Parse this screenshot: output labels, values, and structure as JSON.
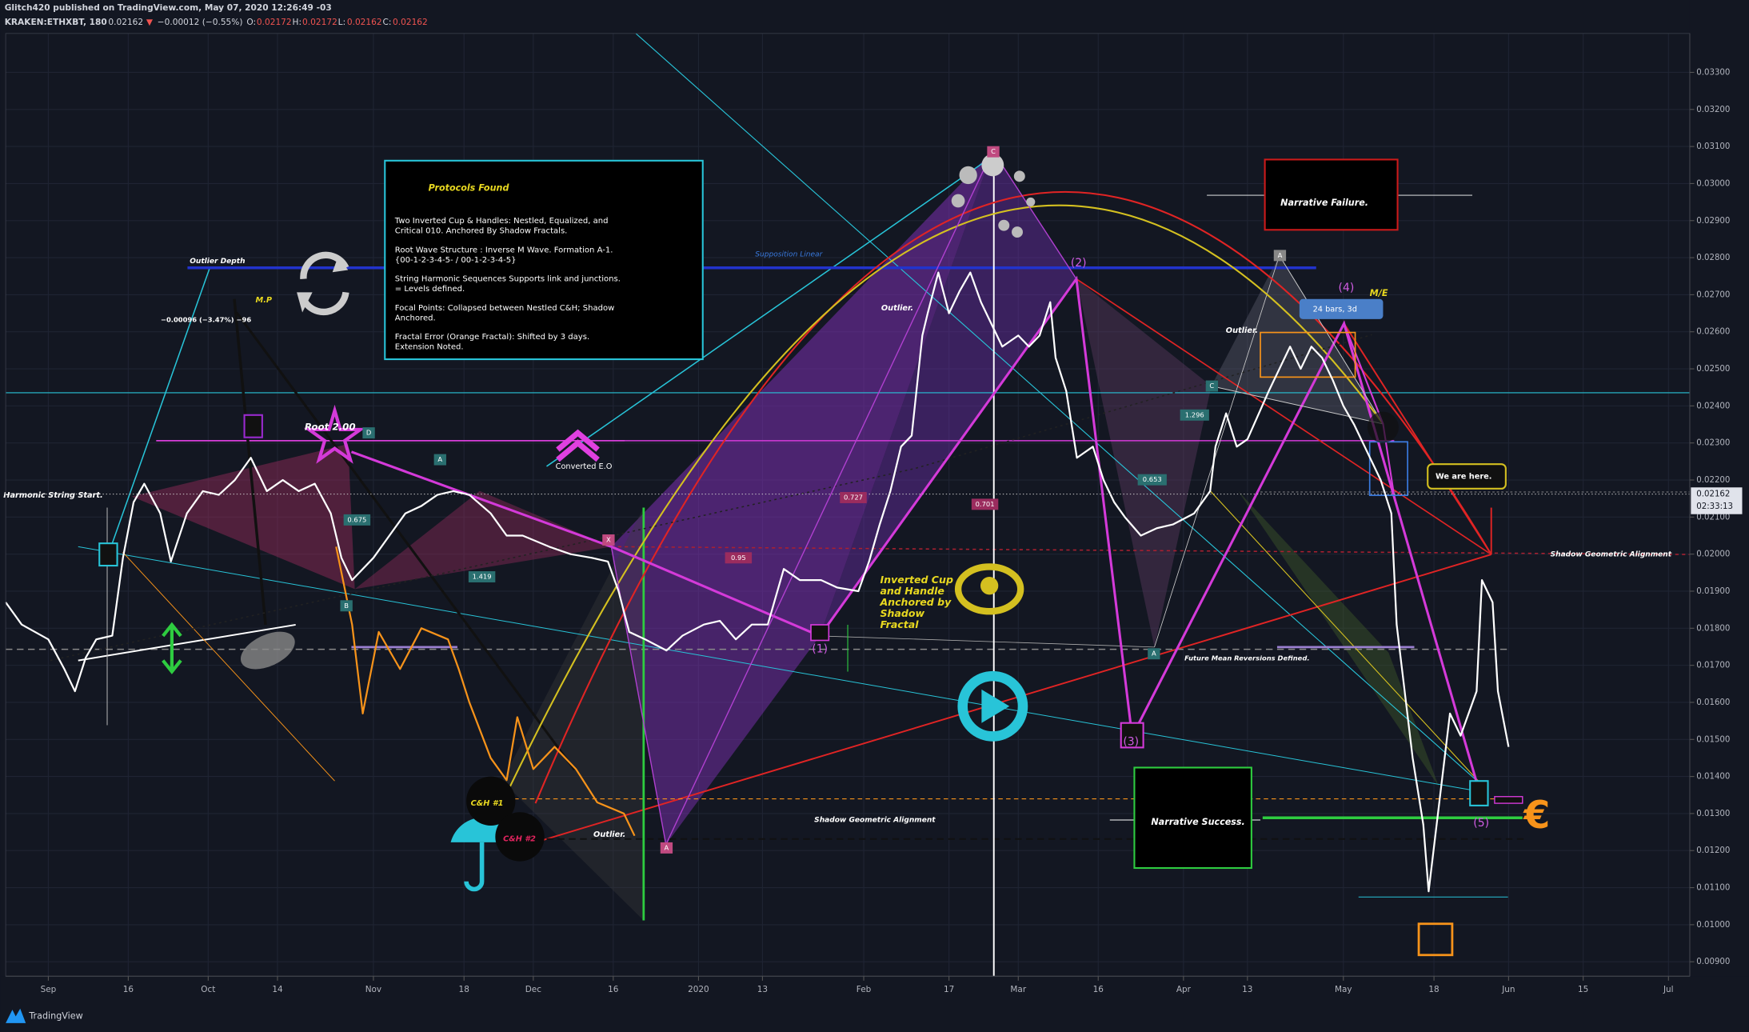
{
  "header": {
    "publisher": "Glitch420 published on TradingView.com, May 07, 2020 12:26:49 -03",
    "symbol": "KRAKEN:ETHXBT, 180",
    "last": "0.02162",
    "direction": "▼",
    "change": "−0.00012 (−0.55%)",
    "ohlc": [
      {
        "key": "O:",
        "value": "0.02172"
      },
      {
        "key": "H:",
        "value": "0.02172"
      },
      {
        "key": "L:",
        "value": "0.02162"
      },
      {
        "key": "C:",
        "value": "0.02162"
      }
    ]
  },
  "protocols": {
    "title": "Protocols Found",
    "paragraphs": [
      [
        "Two Inverted Cup & Handles: Nestled, Equalized, and",
        "Critical 010. Anchored By Shadow Fractals."
      ],
      [
        "Root Wave Structure : Inverse M Wave. Formation A-1.",
        "{00-1-2-3-4-5- / 00-1-2-3-4-5}"
      ],
      [
        "String Harmonic Sequences Supports link and junctions.",
        "= Levels defined."
      ],
      [
        "Focal Points: Collapsed between Nestled C&H; Shadow",
        "Anchored."
      ],
      [
        "Fractal Error (Orange Fractal): Shifted by 3 days.",
        "Extension Noted."
      ]
    ]
  },
  "chart_data": {
    "type": "line",
    "grid": true,
    "xlim": [
      "2019-08-24",
      "2020-07-05"
    ],
    "ylim": [
      0.00861,
      0.03405
    ],
    "xticks": [
      {
        "value": "2019-09-01",
        "label": "Sep"
      },
      {
        "value": "2019-09-16",
        "label": "16"
      },
      {
        "value": "2019-10-01",
        "label": "Oct"
      },
      {
        "value": "2019-10-14",
        "label": "14"
      },
      {
        "value": "2019-11-01",
        "label": "Nov"
      },
      {
        "value": "2019-11-18",
        "label": "18"
      },
      {
        "value": "2019-12-01",
        "label": "Dec"
      },
      {
        "value": "2019-12-16",
        "label": "16"
      },
      {
        "value": "2020-01-01",
        "label": "2020"
      },
      {
        "value": "2020-01-13",
        "label": "13"
      },
      {
        "value": "2020-02-01",
        "label": "Feb"
      },
      {
        "value": "2020-02-17",
        "label": "17"
      },
      {
        "value": "2020-03-01",
        "label": "Mar"
      },
      {
        "value": "2020-03-16",
        "label": "16"
      },
      {
        "value": "2020-04-01",
        "label": "Apr"
      },
      {
        "value": "2020-04-13",
        "label": "13"
      },
      {
        "value": "2020-05-01",
        "label": "May"
      },
      {
        "value": "2020-05-18",
        "label": "18"
      },
      {
        "value": "2020-06-01",
        "label": "Jun"
      },
      {
        "value": "2020-06-15",
        "label": "15"
      },
      {
        "value": "2020-07-01",
        "label": "Jul"
      }
    ],
    "yticks": [
      {
        "value": 0.009,
        "label": "0.00900"
      },
      {
        "value": 0.01,
        "label": "0.01000"
      },
      {
        "value": 0.011,
        "label": "0.01100"
      },
      {
        "value": 0.012,
        "label": "0.01200"
      },
      {
        "value": 0.013,
        "label": "0.01300"
      },
      {
        "value": 0.014,
        "label": "0.01400"
      },
      {
        "value": 0.015,
        "label": "0.01500"
      },
      {
        "value": 0.016,
        "label": "0.01600"
      },
      {
        "value": 0.017,
        "label": "0.01700"
      },
      {
        "value": 0.018,
        "label": "0.01800"
      },
      {
        "value": 0.019,
        "label": "0.01900"
      },
      {
        "value": 0.02,
        "label": "0.02000"
      },
      {
        "value": 0.021,
        "label": "0.02100"
      },
      {
        "value": 0.022,
        "label": "0.02200"
      },
      {
        "value": 0.023,
        "label": "0.02300"
      },
      {
        "value": 0.024,
        "label": "0.02400"
      },
      {
        "value": 0.025,
        "label": "0.02500"
      },
      {
        "value": 0.026,
        "label": "0.02600"
      },
      {
        "value": 0.027,
        "label": "0.02700"
      },
      {
        "value": 0.028,
        "label": "0.02800"
      },
      {
        "value": 0.029,
        "label": "0.02900"
      },
      {
        "value": 0.03,
        "label": "0.03000"
      },
      {
        "value": 0.031,
        "label": "0.03100"
      },
      {
        "value": 0.032,
        "label": "0.03200"
      },
      {
        "value": 0.033,
        "label": "0.03300"
      }
    ],
    "series": [
      {
        "color": "#ffffff",
        "x": [
          "2019-08-24",
          "2019-08-27",
          "2019-09-01",
          "2019-09-04",
          "2019-09-06",
          "2019-09-08",
          "2019-09-10",
          "2019-09-13",
          "2019-09-15",
          "2019-09-17",
          "2019-09-19",
          "2019-09-22",
          "2019-09-24",
          "2019-09-27",
          "2019-09-30",
          "2019-10-03",
          "2019-10-06",
          "2019-10-09",
          "2019-10-12",
          "2019-10-15",
          "2019-10-18",
          "2019-10-21",
          "2019-10-24",
          "2019-10-26",
          "2019-10-28",
          "2019-11-01",
          "2019-11-04",
          "2019-11-07",
          "2019-11-10",
          "2019-11-13",
          "2019-11-16",
          "2019-11-19",
          "2019-11-23",
          "2019-11-26",
          "2019-11-29",
          "2019-12-04",
          "2019-12-08",
          "2019-12-12",
          "2019-12-15",
          "2019-12-17",
          "2019-12-19",
          "2019-12-22",
          "2019-12-26",
          "2019-12-29",
          "2020-01-02",
          "2020-01-05",
          "2020-01-08",
          "2020-01-11",
          "2020-01-14",
          "2020-01-17",
          "2020-01-20",
          "2020-01-24",
          "2020-01-27",
          "2020-01-31",
          "2020-02-02",
          "2020-02-04",
          "2020-02-06",
          "2020-02-08",
          "2020-02-10",
          "2020-02-12",
          "2020-02-13",
          "2020-02-15",
          "2020-02-17",
          "2020-02-19",
          "2020-02-21",
          "2020-02-23",
          "2020-02-25",
          "2020-02-27",
          "2020-03-01",
          "2020-03-03",
          "2020-03-05",
          "2020-03-07",
          "2020-03-08",
          "2020-03-10",
          "2020-03-12",
          "2020-03-15",
          "2020-03-17",
          "2020-03-19",
          "2020-03-21",
          "2020-03-24",
          "2020-03-27",
          "2020-03-30",
          "2020-04-03",
          "2020-04-06",
          "2020-04-07",
          "2020-04-09",
          "2020-04-11",
          "2020-04-13",
          "2020-04-17",
          "2020-04-19",
          "2020-04-21",
          "2020-04-23",
          "2020-04-25",
          "2020-04-27",
          "2020-04-29",
          "2020-05-01",
          "2020-05-03",
          "2020-05-05",
          "2020-05-08",
          "2020-05-10",
          "2020-05-11",
          "2020-05-12",
          "2020-05-14",
          "2020-05-16",
          "2020-05-17",
          "2020-05-18",
          "2020-05-20",
          "2020-05-21",
          "2020-05-23",
          "2020-05-26",
          "2020-05-27",
          "2020-05-29",
          "2020-05-30",
          "2020-06-01"
        ],
        "values": [
          0.0187,
          0.0181,
          0.0177,
          0.0169,
          0.0163,
          0.0172,
          0.0177,
          0.0178,
          0.0199,
          0.0214,
          0.0219,
          0.0211,
          0.0198,
          0.0211,
          0.0217,
          0.0216,
          0.022,
          0.0226,
          0.0217,
          0.022,
          0.0217,
          0.0219,
          0.0211,
          0.0199,
          0.0193,
          0.0199,
          0.0205,
          0.0211,
          0.0213,
          0.0216,
          0.0217,
          0.0216,
          0.0211,
          0.0205,
          0.0205,
          0.0202,
          0.02,
          0.0199,
          0.0198,
          0.019,
          0.0179,
          0.0177,
          0.0174,
          0.0178,
          0.0181,
          0.0182,
          0.0177,
          0.0181,
          0.0181,
          0.0196,
          0.0193,
          0.0193,
          0.0191,
          0.019,
          0.0198,
          0.0208,
          0.0217,
          0.0229,
          0.0232,
          0.0259,
          0.0265,
          0.0276,
          0.0265,
          0.0271,
          0.0276,
          0.0268,
          0.0262,
          0.0256,
          0.0259,
          0.0256,
          0.0259,
          0.0268,
          0.0253,
          0.0244,
          0.0226,
          0.0229,
          0.022,
          0.0214,
          0.021,
          0.0205,
          0.0207,
          0.0208,
          0.0211,
          0.0217,
          0.0229,
          0.0238,
          0.0229,
          0.0231,
          0.0244,
          0.025,
          0.0256,
          0.025,
          0.0256,
          0.0253,
          0.0247,
          0.024,
          0.0235,
          0.0229,
          0.022,
          0.0211,
          0.0181,
          0.0169,
          0.0145,
          0.0127,
          0.0109,
          0.0121,
          0.0145,
          0.0157,
          0.0151,
          0.0163,
          0.0193,
          0.0187,
          0.0163,
          0.0148
        ]
      },
      {
        "color": "#f7931a",
        "x": [
          "2019-10-25",
          "2019-10-28",
          "2019-10-30",
          "2019-11-02",
          "2019-11-06",
          "2019-11-10",
          "2019-11-15",
          "2019-11-17",
          "2019-11-19",
          "2019-11-23",
          "2019-11-26",
          "2019-11-28",
          "2019-12-01",
          "2019-12-05",
          "2019-12-09",
          "2019-12-13",
          "2019-12-18",
          "2019-12-20"
        ],
        "values": [
          0.0202,
          0.0181,
          0.0157,
          0.0179,
          0.0169,
          0.018,
          0.0177,
          0.0169,
          0.016,
          0.0145,
          0.0139,
          0.0156,
          0.0142,
          0.0148,
          0.0142,
          0.0133,
          0.013,
          0.0124
        ]
      }
    ],
    "last_price": 0.02162,
    "countdown": "02:33:13",
    "annotations": [
      "Harmonic String Start.",
      "Outlier Depth",
      "M.P",
      "−0.00096 (−3.47%) −96",
      "Root 2.00",
      "Converted E.O",
      "Supposition Linear",
      "Outlier.",
      "Outlier.",
      "Shadow Geometric Alignment",
      "Shadow Geometric Alignment",
      "Narrative Failure.",
      "Narrative Success.",
      "We are here.",
      "24 bars, 3d",
      "M/E",
      "(1)",
      "(2)",
      "(3)",
      "(4)",
      "(5)",
      "Future Mean Reversions Defined.",
      "C&H #1",
      "C&H #2",
      "Outlier.",
      "€"
    ],
    "cup_note": [
      "Inverted Cup",
      "and Handle",
      "Anchored by",
      "Shadow",
      "Fractal"
    ],
    "ratios": [
      "0.675",
      "1.419",
      "0.95",
      "0.701",
      "0.653",
      "1.296",
      "0.727"
    ],
    "points": [
      "C",
      "A",
      "A",
      "A",
      "D",
      "B",
      "X",
      "A",
      "C"
    ]
  },
  "footer": {
    "brand": "TradingView"
  }
}
